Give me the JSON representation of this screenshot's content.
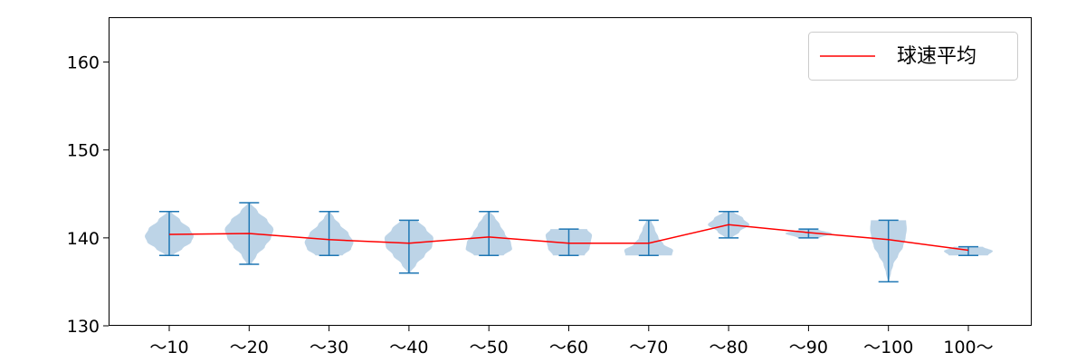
{
  "chart_data": {
    "type": "violin",
    "categories": [
      "～10",
      "～20",
      "～30",
      "～40",
      "～50",
      "～60",
      "～70",
      "～80",
      "～90",
      "～100",
      "100～"
    ],
    "ylim": [
      130,
      165
    ],
    "yticks": [
      130,
      140,
      150,
      160
    ],
    "grid": false,
    "legend_position": "top-right",
    "legend": [
      {
        "label": "球速平均",
        "color": "#ff0000"
      }
    ],
    "colors": {
      "violin_fill": "#b9d2e6",
      "violin_line": "#1f77b4",
      "mean_line": "#ff0000",
      "axis": "#000000"
    },
    "distributions": [
      {
        "min": 138,
        "max": 143,
        "mean": 140.4,
        "shape": [
          [
            138,
            0.15
          ],
          [
            138.8,
            0.55
          ],
          [
            139.5,
            0.9
          ],
          [
            140.2,
            1.0
          ],
          [
            141,
            0.85
          ],
          [
            142,
            0.45
          ],
          [
            143,
            0.08
          ]
        ]
      },
      {
        "min": 137,
        "max": 144,
        "mean": 140.5,
        "shape": [
          [
            137,
            0.1
          ],
          [
            138,
            0.3
          ],
          [
            139,
            0.65
          ],
          [
            140,
            0.9
          ],
          [
            141,
            1.0
          ],
          [
            142,
            0.75
          ],
          [
            143,
            0.35
          ],
          [
            144,
            0.05
          ]
        ]
      },
      {
        "min": 138,
        "max": 143,
        "mean": 139.8,
        "shape": [
          [
            138,
            0.55
          ],
          [
            138.7,
            0.9
          ],
          [
            139.5,
            1.0
          ],
          [
            140.5,
            0.8
          ],
          [
            141.5,
            0.45
          ],
          [
            142.3,
            0.2
          ],
          [
            143,
            0.05
          ]
        ]
      },
      {
        "min": 136,
        "max": 142,
        "mean": 139.4,
        "shape": [
          [
            136,
            0.05
          ],
          [
            137,
            0.3
          ],
          [
            138,
            0.65
          ],
          [
            139,
            0.95
          ],
          [
            140,
            1.0
          ],
          [
            141,
            0.7
          ],
          [
            142,
            0.35
          ]
        ]
      },
      {
        "min": 138,
        "max": 143,
        "mean": 140.1,
        "shape": [
          [
            138,
            0.6
          ],
          [
            138.7,
            0.95
          ],
          [
            139.5,
            0.9
          ],
          [
            140.5,
            0.65
          ],
          [
            141.5,
            0.45
          ],
          [
            142.3,
            0.25
          ],
          [
            143,
            0.05
          ]
        ]
      },
      {
        "min": 138,
        "max": 141,
        "mean": 139.4,
        "shape": [
          [
            138,
            0.65
          ],
          [
            138.8,
            0.85
          ],
          [
            139.5,
            0.9
          ],
          [
            140.3,
            0.95
          ],
          [
            141,
            0.75
          ]
        ]
      },
      {
        "min": 138,
        "max": 142,
        "mean": 139.4,
        "shape": [
          [
            138,
            0.95
          ],
          [
            138.6,
            1.0
          ],
          [
            139.3,
            0.6
          ],
          [
            140,
            0.4
          ],
          [
            141,
            0.25
          ],
          [
            142,
            0.1
          ]
        ]
      },
      {
        "min": 140,
        "max": 143,
        "mean": 141.5,
        "shape": [
          [
            140,
            0.15
          ],
          [
            140.7,
            0.45
          ],
          [
            141.5,
            0.85
          ],
          [
            142.2,
            0.6
          ],
          [
            143,
            0.2
          ]
        ]
      },
      {
        "min": 140,
        "max": 141,
        "mean": 140.6,
        "shape": [
          [
            140,
            0.45
          ],
          [
            140.5,
            0.95
          ],
          [
            141,
            0.35
          ]
        ]
      },
      {
        "min": 135,
        "max": 142,
        "mean": 139.8,
        "shape": [
          [
            135,
            0.02
          ],
          [
            136,
            0.1
          ],
          [
            137,
            0.2
          ],
          [
            138,
            0.4
          ],
          [
            139,
            0.6
          ],
          [
            140,
            0.7
          ],
          [
            141,
            0.75
          ],
          [
            142,
            0.72
          ]
        ]
      },
      {
        "min": 138,
        "max": 139,
        "mean": 138.6,
        "shape": [
          [
            138,
            0.8
          ],
          [
            138.5,
            1.0
          ],
          [
            139,
            0.6
          ]
        ]
      }
    ]
  }
}
